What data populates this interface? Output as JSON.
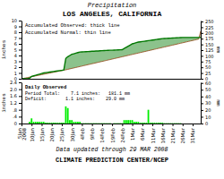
{
  "chart_data": [
    {
      "type": "line",
      "title": "Precipitation",
      "subtitle": "LOS ANGELES, CALIFORNIA",
      "ylabel": "inches",
      "y2label": "mm",
      "series": [
        {
          "name": "Accumulated Observed: thick line",
          "color": "#007700",
          "values": [
            0,
            0,
            0,
            0,
            0.1,
            0.4,
            0.5,
            0.6,
            0.7,
            0.8,
            0.9,
            1.0,
            1.05,
            1.1,
            1.15,
            1.2,
            1.25,
            1.3,
            1.35,
            1.4,
            1.45,
            1.5,
            3.5,
            3.8,
            4.0,
            4.2,
            4.3,
            4.4,
            4.5,
            4.6,
            4.62,
            4.64,
            4.66,
            4.68,
            4.7,
            4.72,
            4.74,
            4.76,
            4.78,
            4.8,
            4.82,
            4.84,
            4.86,
            4.88,
            4.9,
            4.9,
            4.92,
            4.94,
            4.96,
            4.98,
            5.0,
            5.2,
            5.4,
            5.6,
            5.8,
            6.0,
            6.1,
            6.2,
            6.3,
            6.35,
            6.4,
            6.45,
            6.5,
            6.55,
            6.6,
            6.65,
            6.7,
            6.75,
            6.8,
            6.85,
            6.9,
            6.92,
            6.94,
            6.96,
            6.98,
            7.0,
            7.02,
            7.04,
            7.06,
            7.08,
            7.1,
            7.1,
            7.1,
            7.1,
            7.1,
            7.1,
            7.1,
            7.1,
            7.1,
            7.1
          ]
        },
        {
          "name": "Accumulated Normal: thin line",
          "color": "#8B4513",
          "values": [
            0,
            0.07,
            0.14,
            0.21,
            0.28,
            0.35,
            0.42,
            0.49,
            0.56,
            0.63,
            0.7,
            0.77,
            0.84,
            0.91,
            0.98,
            1.05,
            1.12,
            1.19,
            1.26,
            1.33,
            1.4,
            1.47,
            1.54,
            1.62,
            1.7,
            1.78,
            1.86,
            1.94,
            2.02,
            2.1,
            2.18,
            2.26,
            2.34,
            2.42,
            2.5,
            2.58,
            2.66,
            2.74,
            2.82,
            2.9,
            2.98,
            3.06,
            3.14,
            3.22,
            3.3,
            3.38,
            3.46,
            3.54,
            3.62,
            3.7,
            3.78,
            3.86,
            3.94,
            4.02,
            4.1,
            4.18,
            4.26,
            4.34,
            4.42,
            4.5,
            4.58,
            4.66,
            4.74,
            4.82,
            4.9,
            4.98,
            5.06,
            5.14,
            5.22,
            5.3,
            5.38,
            5.46,
            5.54,
            5.62,
            5.7,
            5.78,
            5.86,
            5.94,
            6.02,
            6.1,
            6.18,
            6.26,
            6.34,
            6.42,
            6.5,
            6.58,
            6.66,
            6.74,
            6.82,
            8.2
          ]
        }
      ],
      "ylim": [
        0,
        10
      ],
      "yticks": [
        0,
        1,
        2,
        3,
        4,
        5,
        6,
        7,
        8,
        9,
        10
      ],
      "y2lim": [
        0,
        254
      ],
      "y2ticks": [
        0,
        25,
        50,
        75,
        100,
        125,
        150,
        175,
        200,
        225,
        250
      ],
      "legend": "upper left",
      "grid": false,
      "tick_labels": "y"
    },
    {
      "type": "bar",
      "ylabel": "inches",
      "y2label": "mm",
      "categories": [
        "5Jan\n2008",
        null,
        null,
        null,
        null,
        "10Jan",
        null,
        null,
        null,
        null,
        "15Jan",
        null,
        null,
        null,
        null,
        "20Jan",
        null,
        null,
        null,
        null,
        "25Jan",
        null,
        null,
        null,
        null,
        "30Jan",
        null,
        null,
        null,
        null,
        "4Feb",
        null,
        null,
        null,
        null,
        "9Feb",
        null,
        null,
        null,
        null,
        "14Feb",
        null,
        null,
        null,
        null,
        "19Feb",
        null,
        null,
        null,
        null,
        "24Feb",
        null,
        null,
        null,
        null,
        "1Mar",
        null,
        null,
        null,
        null,
        "6Mar",
        null,
        null,
        null,
        null,
        "11Mar",
        null,
        null,
        null,
        null,
        "16Mar",
        null,
        null,
        null,
        null,
        "21Mar",
        null,
        null,
        null,
        null,
        "26Mar",
        null,
        null,
        null,
        null,
        "31Mar",
        null,
        null,
        null,
        null
      ],
      "series": [
        {
          "name": "Daily Observed",
          "color": "#00ee00",
          "values": [
            0,
            0,
            0,
            0,
            0.1,
            0.3,
            0.1,
            0.1,
            0.1,
            0.1,
            0.1,
            0.1,
            0.05,
            0.05,
            0.05,
            0.05,
            0.05,
            0.05,
            0.05,
            0.05,
            0.05,
            0.05,
            1.0,
            0.9,
            0.2,
            0.2,
            0.1,
            0.1,
            0.1,
            0.1,
            0.02,
            0.02,
            0.02,
            0.02,
            0.02,
            0.02,
            0.02,
            0.02,
            0.02,
            0.02,
            0.02,
            0.02,
            0.02,
            0.02,
            0.02,
            0,
            0.02,
            0.02,
            0.02,
            0.02,
            0.02,
            0.2,
            0.2,
            0.2,
            0.2,
            0.2,
            0.1,
            0.1,
            0.1,
            0.05,
            0.05,
            0.05,
            0.05,
            0.8,
            0.05,
            0.05,
            0.05,
            0.05,
            0.05,
            0.05,
            0.05,
            0.02,
            0.02,
            0.02,
            0.02,
            0.02,
            0.02,
            0.02,
            0.02,
            0.02,
            0,
            0,
            0,
            0,
            0,
            0,
            0,
            0,
            0,
            0
          ]
        }
      ],
      "ylim": [
        0,
        2.4
      ],
      "yticks": [
        0,
        {
          "value": 0.4,
          "label": ".4"
        },
        {
          "value": 0.8,
          "label": ".8"
        },
        1.2,
        1.6,
        {
          "value": 2.0,
          "label": "2.0"
        },
        2.4
      ],
      "y2lim": [
        0,
        60.96
      ],
      "y2ticks": [
        0,
        10,
        20,
        30,
        40,
        50,
        60
      ],
      "annotations": [
        "Period Total:    7.1 inches:   181.1 mm",
        "Deficit:       1.1 inches:    29.0 mm"
      ],
      "footnotes": [
        "Data updated through 29 MAR 2008",
        "CLIMATE PREDICTION CENTER/NCEP"
      ],
      "legend": "upper left",
      "grid": false
    }
  ]
}
